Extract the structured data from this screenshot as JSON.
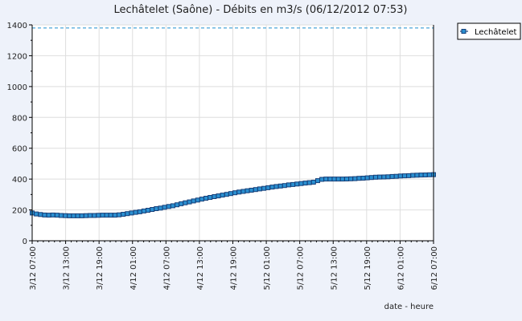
{
  "chart_data": {
    "type": "line",
    "title": "Lechâtelet (Saône) - Débits en m3/s (06/12/2012 07:53)",
    "xlabel": "date - heure",
    "ylabel": "",
    "ylim": [
      0,
      1400
    ],
    "yticks": [
      "0",
      "200",
      "400",
      "600",
      "800",
      "1000",
      "1200",
      "1400"
    ],
    "xticks": [
      "3/12  07:00",
      "3/12  13:00",
      "3/12  19:00",
      "4/12  01:00",
      "4/12  07:00",
      "4/12  13:00",
      "4/12  19:00",
      "5/12  01:00",
      "5/12  07:00",
      "5/12  13:00",
      "5/12  19:00",
      "6/12  01:00",
      "6/12  07:00"
    ],
    "grid": true,
    "legend_position": "top-right",
    "reference_line": {
      "value": 1380,
      "color": "#1f8fd0",
      "style": "dashed"
    },
    "series": [
      {
        "name": "Lechâtelet",
        "color": "#16407a",
        "marker_fill": "#2a8fd0",
        "values": [
          180,
          174,
          170,
          167,
          166,
          167,
          166,
          164,
          163,
          162,
          162,
          162,
          162,
          163,
          164,
          164,
          165,
          166,
          166,
          166,
          166,
          168,
          172,
          176,
          180,
          184,
          188,
          193,
          198,
          203,
          208,
          212,
          217,
          222,
          227,
          233,
          240,
          246,
          252,
          258,
          264,
          270,
          276,
          281,
          286,
          291,
          296,
          301,
          306,
          311,
          316,
          320,
          324,
          328,
          332,
          336,
          340,
          344,
          348,
          352,
          355,
          358,
          362,
          365,
          368,
          371,
          374,
          377,
          380,
          390,
          398,
          400,
          400,
          400,
          400,
          400,
          401,
          402,
          403,
          405,
          406,
          408,
          410,
          412,
          413,
          414,
          415,
          417,
          418,
          420,
          421,
          422,
          424,
          425,
          426,
          427,
          428,
          429
        ]
      }
    ]
  }
}
